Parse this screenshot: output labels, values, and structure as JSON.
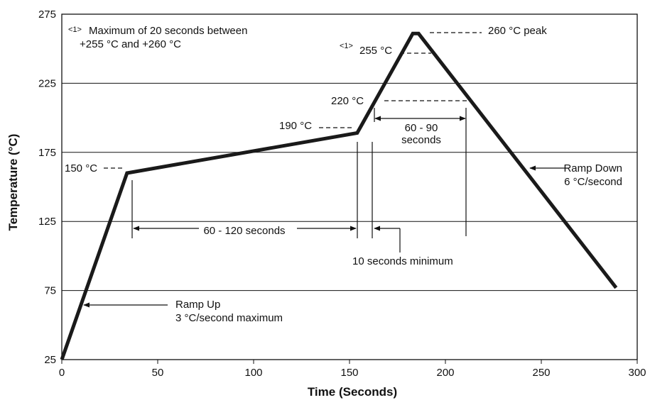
{
  "chart_data": {
    "type": "line",
    "title": "",
    "xlabel": "Time (Seconds)",
    "ylabel": "Temperature (°C)",
    "xlim": [
      0,
      300
    ],
    "ylim": [
      25,
      275
    ],
    "xticks": [
      0,
      50,
      100,
      150,
      200,
      250,
      300
    ],
    "yticks": [
      25,
      75,
      125,
      175,
      225,
      275
    ],
    "grid": "horizontal",
    "series": [
      {
        "name": "",
        "x": [
          0,
          34,
          154,
          183,
          186,
          289
        ],
        "y": [
          25,
          160,
          189,
          261,
          261,
          77
        ]
      }
    ],
    "annotations": {
      "note_marker": "<1>",
      "note_line1": "Maximum of 20 seconds between",
      "note_line2": "+255 °C and +260 °C",
      "peak": "260 °C peak",
      "t255_marker": "<1>",
      "t255": "255 °C",
      "t220": "220 °C",
      "t190": "190 °C",
      "t150": "150 °C",
      "span_60_90_line1": "60 - 90",
      "span_60_90_line2": "seconds",
      "span_60_120": "60 - 120 seconds",
      "min_10s": "10 seconds minimum",
      "ramp_down_line1": "Ramp Down",
      "ramp_down_line2": "6 °C/second",
      "ramp_up_line1": "Ramp Up",
      "ramp_up_line2": "3 °C/second maximum"
    }
  }
}
